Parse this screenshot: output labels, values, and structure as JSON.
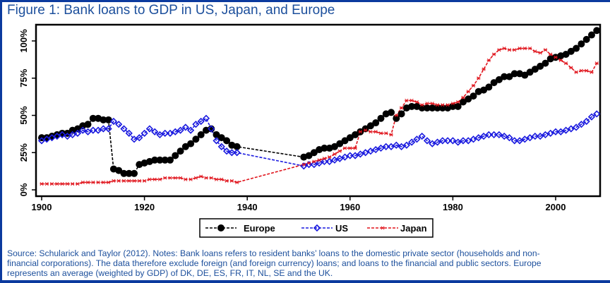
{
  "header": {
    "title": "Figure 1: Bank loans to GDP in US, Japan, and Europe"
  },
  "notes": {
    "lines": [
      "Source: Schularick and Taylor (2012). Notes: Bank loans refers to resident banks’ loans to the domestic private sector (households and non-",
      "financial corporations). The data therefore exclude foreign (and foreign currency) loans; and loans to the financial and public sectors. Europe",
      "represents an average (weighted by GDP) of DK, DE, ES, FR, IT, NL, SE and the UK."
    ]
  },
  "chart_data": {
    "type": "line",
    "title": "Figure 1: Bank loans to GDP in US, Japan, and Europe",
    "xlabel": "",
    "ylabel": "",
    "xlim": [
      1898,
      2009
    ],
    "ylim": [
      0,
      110
    ],
    "x_ticks": [
      1900,
      1920,
      1940,
      1960,
      1980,
      2000
    ],
    "x_tick_labels": [
      "1900",
      "1920",
      "1940",
      "1960",
      "1980",
      "2000"
    ],
    "y_ticks": [
      0,
      25,
      50,
      75,
      100
    ],
    "y_tick_labels": [
      "0%",
      "25%",
      "50%",
      "75%",
      "100%"
    ],
    "grid": false,
    "legend_position": "bottom",
    "series": [
      {
        "name": "Europe",
        "color": "#000000",
        "marker": "filled-circle",
        "line_style": "dashed",
        "points": [
          [
            1900,
            35
          ],
          [
            1901,
            35
          ],
          [
            1902,
            36
          ],
          [
            1903,
            37
          ],
          [
            1904,
            38
          ],
          [
            1905,
            38
          ],
          [
            1906,
            40
          ],
          [
            1907,
            41
          ],
          [
            1908,
            43
          ],
          [
            1909,
            44
          ],
          [
            1910,
            48
          ],
          [
            1911,
            48
          ],
          [
            1912,
            47
          ],
          [
            1913,
            47
          ],
          [
            1914,
            14
          ],
          [
            1915,
            13
          ],
          [
            1916,
            11
          ],
          [
            1917,
            11
          ],
          [
            1918,
            11
          ],
          [
            1919,
            17
          ],
          [
            1920,
            18
          ],
          [
            1921,
            19
          ],
          [
            1922,
            20
          ],
          [
            1923,
            20
          ],
          [
            1924,
            20
          ],
          [
            1925,
            20
          ],
          [
            1926,
            23
          ],
          [
            1927,
            26
          ],
          [
            1928,
            29
          ],
          [
            1929,
            31
          ],
          [
            1930,
            34
          ],
          [
            1931,
            37
          ],
          [
            1932,
            40
          ],
          [
            1933,
            41
          ],
          [
            1934,
            37
          ],
          [
            1935,
            35
          ],
          [
            1936,
            33
          ],
          [
            1937,
            30
          ],
          [
            1938,
            29
          ],
          [
            1951,
            22
          ],
          [
            1952,
            23
          ],
          [
            1953,
            25
          ],
          [
            1954,
            27
          ],
          [
            1955,
            28
          ],
          [
            1956,
            28
          ],
          [
            1957,
            29
          ],
          [
            1958,
            31
          ],
          [
            1959,
            33
          ],
          [
            1960,
            35
          ],
          [
            1961,
            37
          ],
          [
            1962,
            39
          ],
          [
            1963,
            41
          ],
          [
            1964,
            43
          ],
          [
            1965,
            45
          ],
          [
            1966,
            48
          ],
          [
            1967,
            51
          ],
          [
            1968,
            52
          ],
          [
            1969,
            48
          ],
          [
            1970,
            51
          ],
          [
            1971,
            55
          ],
          [
            1972,
            56
          ],
          [
            1973,
            56
          ],
          [
            1974,
            55
          ],
          [
            1975,
            55
          ],
          [
            1976,
            55
          ],
          [
            1977,
            55
          ],
          [
            1978,
            55
          ],
          [
            1979,
            55
          ],
          [
            1980,
            56
          ],
          [
            1981,
            56
          ],
          [
            1982,
            59
          ],
          [
            1983,
            61
          ],
          [
            1984,
            63
          ],
          [
            1985,
            66
          ],
          [
            1986,
            67
          ],
          [
            1987,
            69
          ],
          [
            1988,
            72
          ],
          [
            1989,
            74
          ],
          [
            1990,
            76
          ],
          [
            1991,
            76
          ],
          [
            1992,
            78
          ],
          [
            1993,
            78
          ],
          [
            1994,
            77
          ],
          [
            1995,
            79
          ],
          [
            1996,
            81
          ],
          [
            1997,
            83
          ],
          [
            1998,
            85
          ],
          [
            1999,
            88
          ],
          [
            2000,
            89
          ],
          [
            2001,
            90
          ],
          [
            2002,
            91
          ],
          [
            2003,
            93
          ],
          [
            2004,
            95
          ],
          [
            2005,
            98
          ],
          [
            2006,
            101
          ],
          [
            2007,
            104
          ],
          [
            2008,
            107
          ]
        ]
      },
      {
        "name": "US",
        "color": "#1a1adf",
        "marker": "hollow-diamond",
        "line_style": "dashed",
        "points": [
          [
            1900,
            33
          ],
          [
            1901,
            34
          ],
          [
            1902,
            35
          ],
          [
            1903,
            36
          ],
          [
            1904,
            37
          ],
          [
            1905,
            36
          ],
          [
            1906,
            37
          ],
          [
            1907,
            38
          ],
          [
            1908,
            40
          ],
          [
            1909,
            39
          ],
          [
            1910,
            40
          ],
          [
            1911,
            40
          ],
          [
            1912,
            41
          ],
          [
            1913,
            41
          ],
          [
            1914,
            46
          ],
          [
            1915,
            44
          ],
          [
            1916,
            41
          ],
          [
            1917,
            38
          ],
          [
            1918,
            34
          ],
          [
            1919,
            35
          ],
          [
            1920,
            38
          ],
          [
            1921,
            41
          ],
          [
            1922,
            39
          ],
          [
            1923,
            37
          ],
          [
            1924,
            38
          ],
          [
            1925,
            38
          ],
          [
            1926,
            39
          ],
          [
            1927,
            40
          ],
          [
            1928,
            42
          ],
          [
            1929,
            40
          ],
          [
            1930,
            44
          ],
          [
            1931,
            46
          ],
          [
            1932,
            48
          ],
          [
            1933,
            41
          ],
          [
            1934,
            33
          ],
          [
            1935,
            29
          ],
          [
            1936,
            26
          ],
          [
            1937,
            25
          ],
          [
            1938,
            25
          ],
          [
            1951,
            16
          ],
          [
            1952,
            17
          ],
          [
            1953,
            17
          ],
          [
            1954,
            18
          ],
          [
            1955,
            19
          ],
          [
            1956,
            19
          ],
          [
            1957,
            20
          ],
          [
            1958,
            21
          ],
          [
            1959,
            22
          ],
          [
            1960,
            23
          ],
          [
            1961,
            23
          ],
          [
            1962,
            24
          ],
          [
            1963,
            25
          ],
          [
            1964,
            26
          ],
          [
            1965,
            27
          ],
          [
            1966,
            28
          ],
          [
            1967,
            29
          ],
          [
            1968,
            29
          ],
          [
            1969,
            30
          ],
          [
            1970,
            29
          ],
          [
            1971,
            30
          ],
          [
            1972,
            32
          ],
          [
            1973,
            34
          ],
          [
            1974,
            36
          ],
          [
            1975,
            33
          ],
          [
            1976,
            31
          ],
          [
            1977,
            32
          ],
          [
            1978,
            33
          ],
          [
            1979,
            33
          ],
          [
            1980,
            33
          ],
          [
            1981,
            32
          ],
          [
            1982,
            33
          ],
          [
            1983,
            33
          ],
          [
            1984,
            34
          ],
          [
            1985,
            35
          ],
          [
            1986,
            36
          ],
          [
            1987,
            37
          ],
          [
            1988,
            37
          ],
          [
            1989,
            37
          ],
          [
            1990,
            36
          ],
          [
            1991,
            35
          ],
          [
            1992,
            33
          ],
          [
            1993,
            33
          ],
          [
            1994,
            34
          ],
          [
            1995,
            35
          ],
          [
            1996,
            36
          ],
          [
            1997,
            36
          ],
          [
            1998,
            37
          ],
          [
            1999,
            38
          ],
          [
            2000,
            39
          ],
          [
            2001,
            39
          ],
          [
            2002,
            40
          ],
          [
            2003,
            41
          ],
          [
            2004,
            42
          ],
          [
            2005,
            44
          ],
          [
            2006,
            46
          ],
          [
            2007,
            49
          ],
          [
            2008,
            51
          ]
        ]
      },
      {
        "name": "Japan",
        "color": "#e0141c",
        "marker": "x-star",
        "line_style": "dashed",
        "points": [
          [
            1900,
            4
          ],
          [
            1901,
            4
          ],
          [
            1902,
            4
          ],
          [
            1903,
            4
          ],
          [
            1904,
            4
          ],
          [
            1905,
            4
          ],
          [
            1906,
            4
          ],
          [
            1907,
            4
          ],
          [
            1908,
            5
          ],
          [
            1909,
            5
          ],
          [
            1910,
            5
          ],
          [
            1911,
            5
          ],
          [
            1912,
            5
          ],
          [
            1913,
            5
          ],
          [
            1914,
            6
          ],
          [
            1915,
            6
          ],
          [
            1916,
            6
          ],
          [
            1917,
            6
          ],
          [
            1918,
            6
          ],
          [
            1919,
            6
          ],
          [
            1920,
            6
          ],
          [
            1921,
            7
          ],
          [
            1922,
            7
          ],
          [
            1923,
            7
          ],
          [
            1924,
            8
          ],
          [
            1925,
            8
          ],
          [
            1926,
            8
          ],
          [
            1927,
            8
          ],
          [
            1928,
            7
          ],
          [
            1929,
            7
          ],
          [
            1930,
            8
          ],
          [
            1931,
            9
          ],
          [
            1932,
            8
          ],
          [
            1933,
            8
          ],
          [
            1934,
            7
          ],
          [
            1935,
            7
          ],
          [
            1936,
            6
          ],
          [
            1937,
            6
          ],
          [
            1938,
            5
          ],
          [
            1951,
            17
          ],
          [
            1952,
            18
          ],
          [
            1953,
            19
          ],
          [
            1954,
            20
          ],
          [
            1955,
            21
          ],
          [
            1956,
            22
          ],
          [
            1957,
            24
          ],
          [
            1958,
            26
          ],
          [
            1959,
            28
          ],
          [
            1960,
            28
          ],
          [
            1961,
            28
          ],
          [
            1962,
            39
          ],
          [
            1963,
            40
          ],
          [
            1964,
            39
          ],
          [
            1965,
            39
          ],
          [
            1966,
            38
          ],
          [
            1967,
            38
          ],
          [
            1968,
            37
          ],
          [
            1969,
            50
          ],
          [
            1970,
            55
          ],
          [
            1971,
            60
          ],
          [
            1972,
            60
          ],
          [
            1973,
            59
          ],
          [
            1974,
            57
          ],
          [
            1975,
            58
          ],
          [
            1976,
            58
          ],
          [
            1977,
            57
          ],
          [
            1978,
            57
          ],
          [
            1979,
            57
          ],
          [
            1980,
            58
          ],
          [
            1981,
            59
          ],
          [
            1982,
            62
          ],
          [
            1983,
            66
          ],
          [
            1984,
            70
          ],
          [
            1985,
            75
          ],
          [
            1986,
            81
          ],
          [
            1987,
            87
          ],
          [
            1988,
            91
          ],
          [
            1989,
            94
          ],
          [
            1990,
            95
          ],
          [
            1991,
            94
          ],
          [
            1992,
            94
          ],
          [
            1993,
            95
          ],
          [
            1994,
            95
          ],
          [
            1995,
            95
          ],
          [
            1996,
            93
          ],
          [
            1997,
            92
          ],
          [
            1998,
            94
          ],
          [
            1999,
            91
          ],
          [
            2000,
            89
          ],
          [
            2001,
            87
          ],
          [
            2002,
            85
          ],
          [
            2003,
            82
          ],
          [
            2004,
            79
          ],
          [
            2005,
            80
          ],
          [
            2006,
            80
          ],
          [
            2007,
            79
          ],
          [
            2008,
            85
          ]
        ]
      }
    ]
  }
}
